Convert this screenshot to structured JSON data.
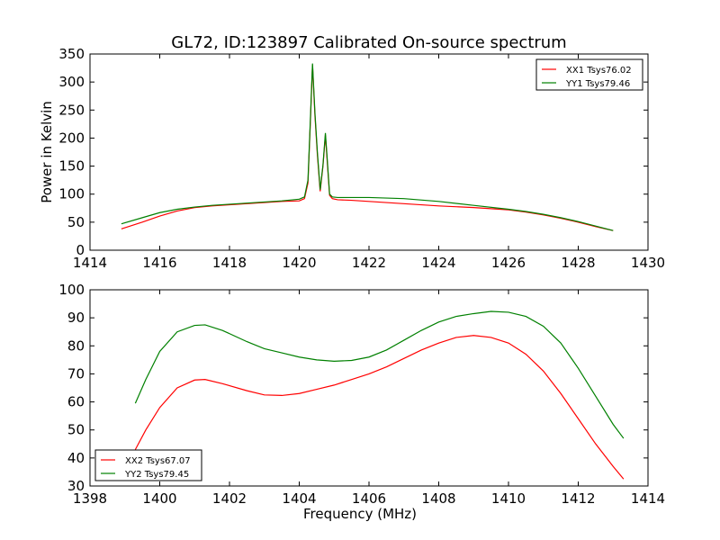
{
  "title": "GL72, ID:123897 Calibrated On-source spectrum",
  "colors": {
    "red": "#ff0000",
    "green": "#008000"
  },
  "chart_data": [
    {
      "type": "line",
      "title": "GL72, ID:123897 Calibrated On-source spectrum",
      "xlabel": "",
      "ylabel": "Power in Kelvin",
      "xlim": [
        1414,
        1430
      ],
      "ylim": [
        0,
        350
      ],
      "xticks": [
        1414,
        1416,
        1418,
        1420,
        1422,
        1424,
        1426,
        1428,
        1430
      ],
      "yticks": [
        0,
        50,
        100,
        150,
        200,
        250,
        300,
        350
      ],
      "grid": false,
      "legend_position": "top-right",
      "series": [
        {
          "name": "XX1 Tsys76.02",
          "color": "#ff0000",
          "x": [
            1414.9,
            1415.5,
            1416,
            1416.5,
            1417,
            1417.5,
            1418,
            1418.5,
            1419,
            1419.5,
            1420,
            1420.15,
            1420.25,
            1420.32,
            1420.38,
            1420.45,
            1420.52,
            1420.6,
            1420.68,
            1420.75,
            1420.8,
            1420.87,
            1420.95,
            1421.1,
            1421.5,
            1422,
            1423,
            1424,
            1425,
            1426,
            1426.5,
            1427,
            1427.5,
            1428,
            1428.5,
            1429
          ],
          "y": [
            38,
            50,
            61,
            70,
            76,
            79,
            81,
            83,
            85,
            87,
            88,
            92,
            120,
            230,
            330,
            240,
            170,
            105,
            150,
            205,
            160,
            98,
            92,
            90,
            89,
            87,
            83,
            79,
            76,
            72,
            68,
            63,
            57,
            50,
            42,
            35
          ]
        },
        {
          "name": "YY1 Tsys79.46",
          "color": "#008000",
          "x": [
            1414.9,
            1415.5,
            1416,
            1416.5,
            1417,
            1417.5,
            1418,
            1418.5,
            1419,
            1419.5,
            1420,
            1420.15,
            1420.25,
            1420.32,
            1420.38,
            1420.45,
            1420.52,
            1420.6,
            1420.68,
            1420.75,
            1420.8,
            1420.87,
            1420.95,
            1421.1,
            1421.5,
            1422,
            1423,
            1424,
            1425,
            1426,
            1426.5,
            1427,
            1427.5,
            1428,
            1428.5,
            1429
          ],
          "y": [
            47,
            58,
            67,
            73,
            77,
            80,
            82,
            84,
            86,
            88,
            91,
            95,
            125,
            235,
            333,
            245,
            175,
            108,
            152,
            209,
            165,
            100,
            95,
            94,
            94,
            94,
            92,
            87,
            80,
            73,
            69,
            64,
            58,
            51,
            43,
            35
          ]
        }
      ]
    },
    {
      "type": "line",
      "title": "",
      "xlabel": "Frequency (MHz)",
      "ylabel": "",
      "xlim": [
        1398,
        1414
      ],
      "ylim": [
        30,
        100
      ],
      "xticks": [
        1398,
        1400,
        1402,
        1404,
        1406,
        1408,
        1410,
        1412,
        1414
      ],
      "yticks": [
        30,
        40,
        50,
        60,
        70,
        80,
        90,
        100
      ],
      "grid": false,
      "legend_position": "bottom-left",
      "series": [
        {
          "name": "XX2 Tsys67.07",
          "color": "#ff0000",
          "x": [
            1399.3,
            1399.6,
            1400,
            1400.5,
            1401,
            1401.3,
            1401.8,
            1402.5,
            1403,
            1403.5,
            1404,
            1404.5,
            1405,
            1405.5,
            1406,
            1406.5,
            1407,
            1407.5,
            1408,
            1408.5,
            1409,
            1409.5,
            1410,
            1410.5,
            1411,
            1411.5,
            1412,
            1412.5,
            1413,
            1413.3
          ],
          "y": [
            43,
            50,
            58,
            65,
            67.8,
            68,
            66.5,
            64,
            62.5,
            62.3,
            63,
            64.5,
            66,
            68,
            70,
            72.5,
            75.5,
            78.5,
            81,
            83,
            83.7,
            83,
            81,
            77,
            71,
            63,
            54,
            45,
            37,
            32.5
          ]
        },
        {
          "name": "YY2 Tsys79.45",
          "color": "#008000",
          "x": [
            1399.3,
            1399.6,
            1400,
            1400.5,
            1401,
            1401.3,
            1401.8,
            1402.5,
            1403,
            1403.5,
            1404,
            1404.5,
            1405,
            1405.5,
            1406,
            1406.5,
            1407,
            1407.5,
            1408,
            1408.5,
            1409,
            1409.5,
            1410,
            1410.5,
            1411,
            1411.5,
            1412,
            1412.5,
            1413,
            1413.3
          ],
          "y": [
            59.5,
            68,
            78,
            85,
            87.3,
            87.5,
            85.5,
            81.5,
            79,
            77.5,
            76,
            75,
            74.5,
            74.8,
            76,
            78.5,
            82,
            85.5,
            88.5,
            90.5,
            91.5,
            92.3,
            92,
            90.5,
            87,
            81,
            72,
            62,
            52,
            47
          ]
        }
      ]
    }
  ]
}
